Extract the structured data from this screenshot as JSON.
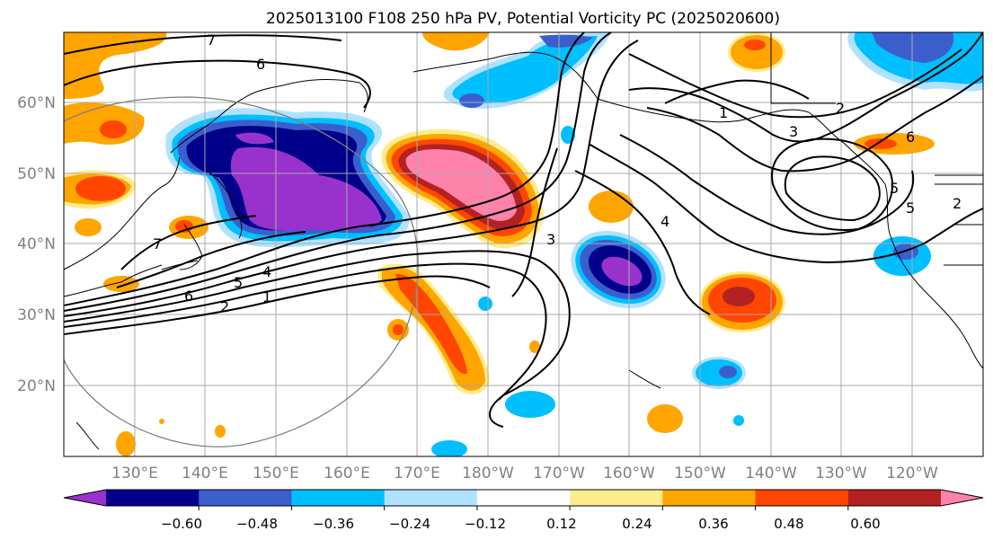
{
  "title": "2025013100 F108 250 hPa PV, Potential Vorticity PC (2025020600)",
  "lat_labels": [
    "60°N",
    "50°N",
    "40°N",
    "30°N",
    "20°N"
  ],
  "lon_labels": [
    "130°E",
    "140°E",
    "150°E",
    "160°E",
    "170°E",
    "180°W",
    "170°W",
    "160°W",
    "150°W",
    "140°W",
    "130°W",
    "120°W"
  ],
  "contour_labels": [
    "7",
    "6",
    "1",
    "2",
    "3",
    "6",
    "4",
    "3",
    "5",
    "7",
    "6",
    "5",
    "4",
    "2",
    "1",
    "5",
    "2"
  ],
  "colorbar": {
    "colors": [
      "#9932cc",
      "#00008b",
      "#3a5fcd",
      "#00bfff",
      "#b0e2ff",
      "#ffffff",
      "#ffec8b",
      "#ffa500",
      "#ff4500",
      "#b22222",
      "#ff82ab"
    ],
    "tick_labels": [
      "−0.60",
      "−0.48",
      "−0.36",
      "−0.24",
      "−0.12",
      "0.12",
      "0.24",
      "0.36",
      "0.48",
      "0.60"
    ]
  }
}
